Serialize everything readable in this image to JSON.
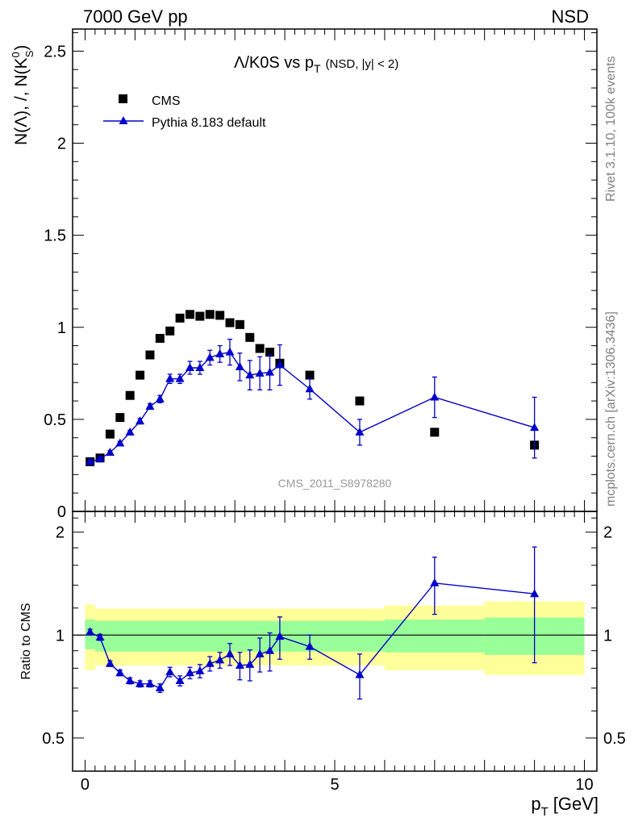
{
  "header": {
    "left": "7000 GeV pp",
    "right": "NSD"
  },
  "side_labels": {
    "top": "Rivet 3.1.10,  100k events",
    "bottom": "mcplots.cern.ch [arXiv:1306.3436]"
  },
  "chart_data": [
    {
      "type": "scatter",
      "panel": "main",
      "title": "Λ/K0S vs p",
      "title_subscript": "T",
      "title_suffix": "(NSD, |y| < 2)",
      "ylabel": "N(Λ), /, N(K",
      "ylabel_sup": "0",
      "ylabel_sub": "S",
      "ylabel_close": ")",
      "xlim": [
        -0.25,
        10.25
      ],
      "ylim": [
        0,
        2.62
      ],
      "y_ticks": [
        "0",
        "0.5",
        "1",
        "1.5",
        "2",
        "2.5"
      ],
      "watermark": "CMS_2011_S8978280",
      "legend_position": "top-left",
      "series": [
        {
          "name": "CMS",
          "style": "markers",
          "marker": "square",
          "color": "#000000",
          "points": [
            [
              0.1,
              0.27
            ],
            [
              0.3,
              0.29
            ],
            [
              0.5,
              0.42
            ],
            [
              0.7,
              0.51
            ],
            [
              0.9,
              0.63
            ],
            [
              1.1,
              0.74
            ],
            [
              1.3,
              0.85
            ],
            [
              1.5,
              0.94
            ],
            [
              1.7,
              0.98
            ],
            [
              1.9,
              1.05
            ],
            [
              2.1,
              1.07
            ],
            [
              2.3,
              1.06
            ],
            [
              2.5,
              1.07
            ],
            [
              2.7,
              1.065
            ],
            [
              2.9,
              1.025
            ],
            [
              3.1,
              1.015
            ],
            [
              3.3,
              0.945
            ],
            [
              3.5,
              0.885
            ],
            [
              3.7,
              0.865
            ],
            [
              3.9,
              0.805
            ],
            [
              4.5,
              0.74
            ],
            [
              5.5,
              0.6
            ],
            [
              7.0,
              0.43
            ],
            [
              9.0,
              0.36
            ]
          ]
        },
        {
          "name": "Pythia 8.183 default",
          "style": "line+markers",
          "marker": "triangle",
          "color": "#0000cc",
          "points": [
            [
              0.1,
              0.27,
              0.01
            ],
            [
              0.3,
              0.285,
              0.01
            ],
            [
              0.5,
              0.32,
              0.01
            ],
            [
              0.7,
              0.37,
              0.01
            ],
            [
              0.9,
              0.43,
              0.01
            ],
            [
              1.1,
              0.49,
              0.015
            ],
            [
              1.3,
              0.57,
              0.015
            ],
            [
              1.5,
              0.61,
              0.02
            ],
            [
              1.7,
              0.72,
              0.025
            ],
            [
              1.9,
              0.72,
              0.025
            ],
            [
              2.1,
              0.78,
              0.035
            ],
            [
              2.3,
              0.78,
              0.035
            ],
            [
              2.5,
              0.835,
              0.04
            ],
            [
              2.7,
              0.855,
              0.045
            ],
            [
              2.9,
              0.865,
              0.07
            ],
            [
              3.1,
              0.785,
              0.075
            ],
            [
              3.3,
              0.74,
              0.08
            ],
            [
              3.5,
              0.75,
              0.09
            ],
            [
              3.7,
              0.755,
              0.095
            ],
            [
              3.9,
              0.795,
              0.11
            ],
            [
              4.5,
              0.665,
              0.055
            ],
            [
              5.5,
              0.43,
              0.07
            ],
            [
              7.0,
              0.62,
              0.11
            ],
            [
              9.0,
              0.455,
              0.165
            ]
          ]
        }
      ]
    },
    {
      "type": "scatter",
      "panel": "ratio",
      "ylabel": "Ratio to CMS",
      "xlabel": "p",
      "xlabel_sub": "T",
      "xlabel_unit": "[GeV]",
      "xlim": [
        -0.25,
        10.25
      ],
      "x_ticks": [
        "0",
        "5",
        "10"
      ],
      "ylim": [
        0.4,
        2.3
      ],
      "y_scale": "log",
      "y_ticks": [
        "0.5",
        "1",
        "2"
      ],
      "reference_line": 1,
      "bands": {
        "colors": {
          "inner": "#99ff99",
          "outer": "#ffff99"
        },
        "segments": [
          {
            "x": [
              0.0,
              0.2
            ],
            "inner": [
              0.91,
              1.11
            ],
            "outer": [
              0.79,
              1.23
            ]
          },
          {
            "x": [
              0.2,
              6.0
            ],
            "inner": [
              0.895,
              1.1
            ],
            "outer": [
              0.815,
              1.195
            ]
          },
          {
            "x": [
              6.0,
              8.0
            ],
            "inner": [
              0.89,
              1.11
            ],
            "outer": [
              0.79,
              1.22
            ]
          },
          {
            "x": [
              8.0,
              10.0
            ],
            "inner": [
              0.875,
              1.125
            ],
            "outer": [
              0.765,
              1.255
            ]
          }
        ]
      },
      "series": [
        {
          "name": "Pythia 8.183 default",
          "style": "line+markers",
          "marker": "triangle",
          "color": "#0000cc",
          "points": [
            [
              0.1,
              1.02,
              0.02
            ],
            [
              0.3,
              0.985,
              0.02
            ],
            [
              0.5,
              0.825,
              0.015
            ],
            [
              0.7,
              0.775,
              0.015
            ],
            [
              0.9,
              0.735,
              0.015
            ],
            [
              1.1,
              0.72,
              0.015
            ],
            [
              1.3,
              0.72,
              0.015
            ],
            [
              1.5,
              0.7,
              0.02
            ],
            [
              1.7,
              0.78,
              0.025
            ],
            [
              1.9,
              0.735,
              0.025
            ],
            [
              2.1,
              0.775,
              0.03
            ],
            [
              2.3,
              0.785,
              0.035
            ],
            [
              2.5,
              0.825,
              0.04
            ],
            [
              2.7,
              0.845,
              0.045
            ],
            [
              2.9,
              0.88,
              0.065
            ],
            [
              3.1,
              0.815,
              0.075
            ],
            [
              3.3,
              0.82,
              0.085
            ],
            [
              3.5,
              0.88,
              0.1
            ],
            [
              3.7,
              0.9,
              0.115
            ],
            [
              3.9,
              0.99,
              0.14
            ],
            [
              4.5,
              0.925,
              0.075
            ],
            [
              5.5,
              0.765,
              0.115
            ],
            [
              7.0,
              1.42,
              0.27
            ],
            [
              9.0,
              1.32,
              0.49
            ]
          ]
        }
      ]
    }
  ]
}
